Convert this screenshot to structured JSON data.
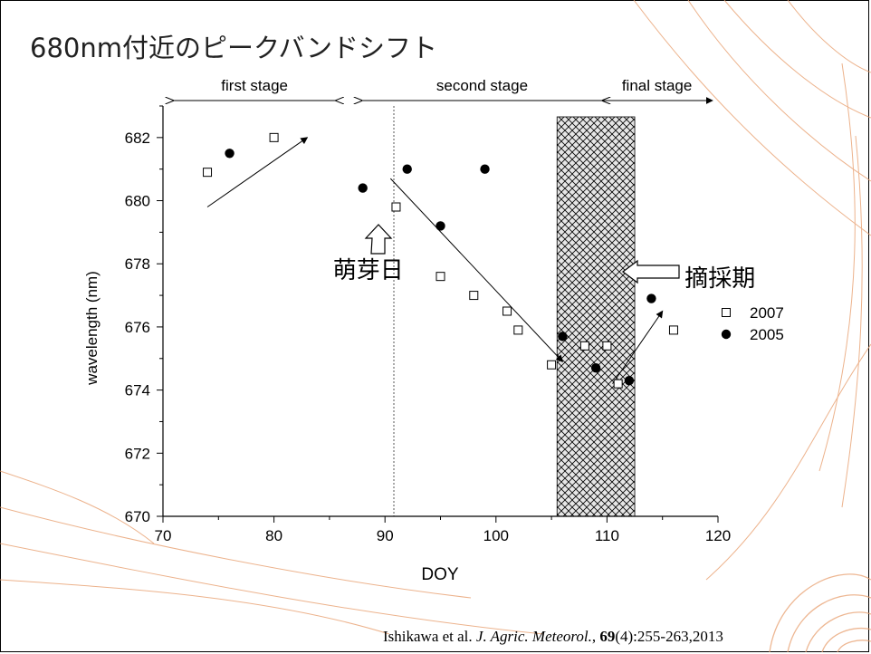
{
  "slide": {
    "title": "680nm付近のピークバンドシフト",
    "citation": {
      "authors": "Ishikawa et al. ",
      "journal": "J. Agric. Meteorol.",
      "comma": ", ",
      "volume": "69",
      "rest": "(4):255-263,2013"
    }
  },
  "colors": {
    "text": "#000000",
    "decoration": "#e8a070",
    "hatch": "#000000",
    "dotted_line": "#555555"
  },
  "chart_data": {
    "type": "scatter",
    "xlabel": "DOY",
    "ylabel": "wavelength (nm)",
    "xlim": [
      70,
      120
    ],
    "ylim": [
      670,
      683
    ],
    "xticks": [
      70,
      80,
      90,
      100,
      110,
      120
    ],
    "yticks": [
      670,
      672,
      674,
      676,
      678,
      680,
      682
    ],
    "grid": false,
    "legend_position": "right",
    "series": [
      {
        "name": "2007",
        "marker": "open-square",
        "x": [
          74,
          80,
          91,
          95,
          98,
          101,
          102,
          105,
          108,
          110,
          111,
          116
        ],
        "y": [
          680.9,
          682.0,
          679.8,
          677.6,
          677.0,
          676.5,
          675.9,
          674.8,
          675.4,
          675.4,
          674.2,
          675.9
        ]
      },
      {
        "name": "2005",
        "marker": "filled-circle",
        "x": [
          76,
          88,
          92,
          95,
          99,
          106,
          109,
          112,
          114
        ],
        "y": [
          681.5,
          680.4,
          681.0,
          679.2,
          681.0,
          675.7,
          674.7,
          674.3,
          676.9
        ]
      }
    ],
    "shaded_region": {
      "x": [
        105.5,
        112.5
      ],
      "pattern": "crosshatch"
    },
    "vertical_line": {
      "x": 90.8,
      "style": "dotted"
    },
    "trend_arrows": [
      {
        "from": [
          74,
          679.8
        ],
        "to": [
          83,
          682.0
        ]
      },
      {
        "from": [
          90.5,
          680.7
        ],
        "to": [
          106,
          674.9
        ]
      },
      {
        "from": [
          110.5,
          674.2
        ],
        "to": [
          115,
          676.5
        ]
      }
    ],
    "stages": [
      {
        "label": "first stage",
        "from": 71,
        "to": 85.5
      },
      {
        "label": "second stage",
        "from": 88,
        "to": 109.5
      },
      {
        "label": "final stage",
        "from": 109.5,
        "to": 119.5
      }
    ],
    "annotations": {
      "budding": {
        "text": "萌芽日",
        "x": 88.5,
        "y": 678.5
      },
      "plucking": {
        "text": "摘採期",
        "x": 117,
        "y": 677.8
      }
    }
  }
}
